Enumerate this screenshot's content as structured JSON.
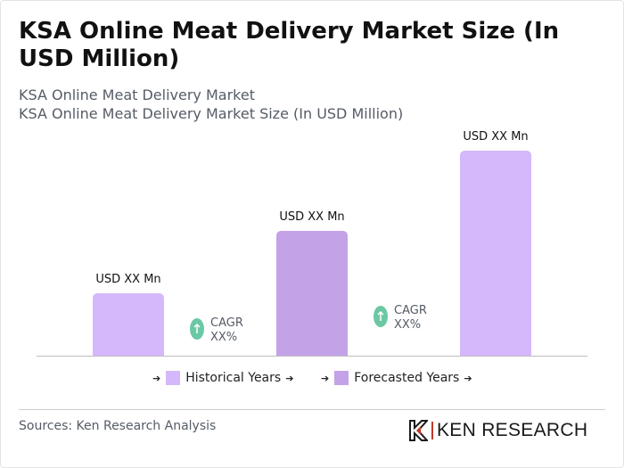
{
  "title": "KSA Online Meat Delivery Market Size (In USD Million)",
  "subtitle_1": "KSA Online Meat Delivery Market",
  "subtitle_2": "KSA Online Meat Delivery Market Size (In USD Million)",
  "chart_data": {
    "type": "bar",
    "categories": [
      "",
      "",
      ""
    ],
    "values": [
      70,
      140,
      230
    ],
    "data_labels": [
      "USD XX Mn",
      "USD XX Mn",
      "USD XX Mn"
    ],
    "bar_colors": [
      "#d4b8fb",
      "#c4a2e8",
      "#d4b8fb"
    ],
    "cagr_labels": [
      {
        "line1": "CAGR",
        "line2": "XX%"
      },
      {
        "line1": "CAGR",
        "line2": "XX%"
      }
    ],
    "cagr_icon_color": "#6cc8a4",
    "grid": false,
    "legend_position": "bottom"
  },
  "legend": [
    {
      "label": "Historical Years",
      "color": "#d4b8fb",
      "arrow": "➔"
    },
    {
      "label": "Forecasted Years",
      "color": "#c4a2e8",
      "arrow": "➔"
    }
  ],
  "source": "Sources: Ken Research Analysis",
  "logo": {
    "text": "KEN RESEARCH",
    "icon": "ken-research-logo-icon"
  }
}
